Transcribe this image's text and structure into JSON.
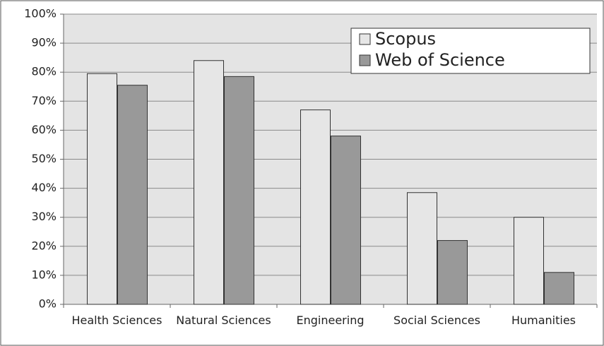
{
  "chart_data": {
    "type": "bar",
    "categories": [
      "Health Sciences",
      "Natural Sciences",
      "Engineering",
      "Social Sciences",
      "Humanities"
    ],
    "series": [
      {
        "name": "Scopus",
        "color": "#e6e6e6",
        "values": [
          79.5,
          84,
          67,
          38.5,
          30
        ]
      },
      {
        "name": "Web of Science",
        "color": "#999999",
        "values": [
          75.5,
          78.5,
          58,
          22,
          11
        ]
      }
    ],
    "ylim": [
      0,
      100
    ],
    "yticks": [
      {
        "value": 0,
        "label": "0%"
      },
      {
        "value": 10,
        "label": "10%"
      },
      {
        "value": 20,
        "label": "20%"
      },
      {
        "value": 30,
        "label": "30%"
      },
      {
        "value": 40,
        "label": "40%"
      },
      {
        "value": 50,
        "label": "50%"
      },
      {
        "value": 60,
        "label": "60%"
      },
      {
        "value": 70,
        "label": "70%"
      },
      {
        "value": 80,
        "label": "80%"
      },
      {
        "value": 90,
        "label": "90%"
      },
      {
        "value": 100,
        "label": "100%"
      }
    ],
    "grid": true,
    "legend": "top right"
  }
}
